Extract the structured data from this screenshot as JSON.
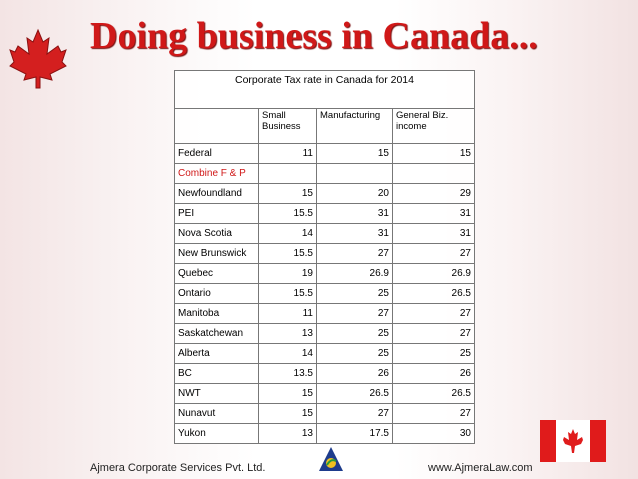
{
  "header": {
    "title": "Doing business in Canada..."
  },
  "table": {
    "caption": "Corporate Tax rate in Canada for 2014",
    "columns": [
      "Small Business",
      "Manufacturing",
      "General  Biz. income"
    ],
    "rows": [
      [
        "Federal",
        11,
        15,
        15
      ],
      [
        "Combine F & P"
      ],
      [
        "Newfoundland",
        15,
        20,
        29
      ],
      [
        "PEI",
        15.5,
        31,
        31
      ],
      [
        "Nova Scotia",
        14,
        31,
        31
      ],
      [
        "New Brunswick",
        15.5,
        27,
        27
      ],
      [
        "Quebec",
        19,
        26.9,
        26.9
      ],
      [
        "Ontario",
        15.5,
        25,
        26.5
      ],
      [
        "Manitoba",
        11,
        27,
        27
      ],
      [
        "Saskatchewan",
        13,
        25,
        27
      ],
      [
        "Alberta",
        14,
        25,
        25
      ],
      [
        "BC",
        13.5,
        26,
        26
      ],
      [
        "NWT",
        15,
        26.5,
        26.5
      ],
      [
        "Nunavut",
        15,
        27,
        27
      ],
      [
        "Yukon",
        13,
        17.5,
        30
      ]
    ]
  },
  "footer": {
    "left": "Ajmera Corporate Services Pvt. Ltd.",
    "right": "www.AjmeraLaw.com"
  }
}
